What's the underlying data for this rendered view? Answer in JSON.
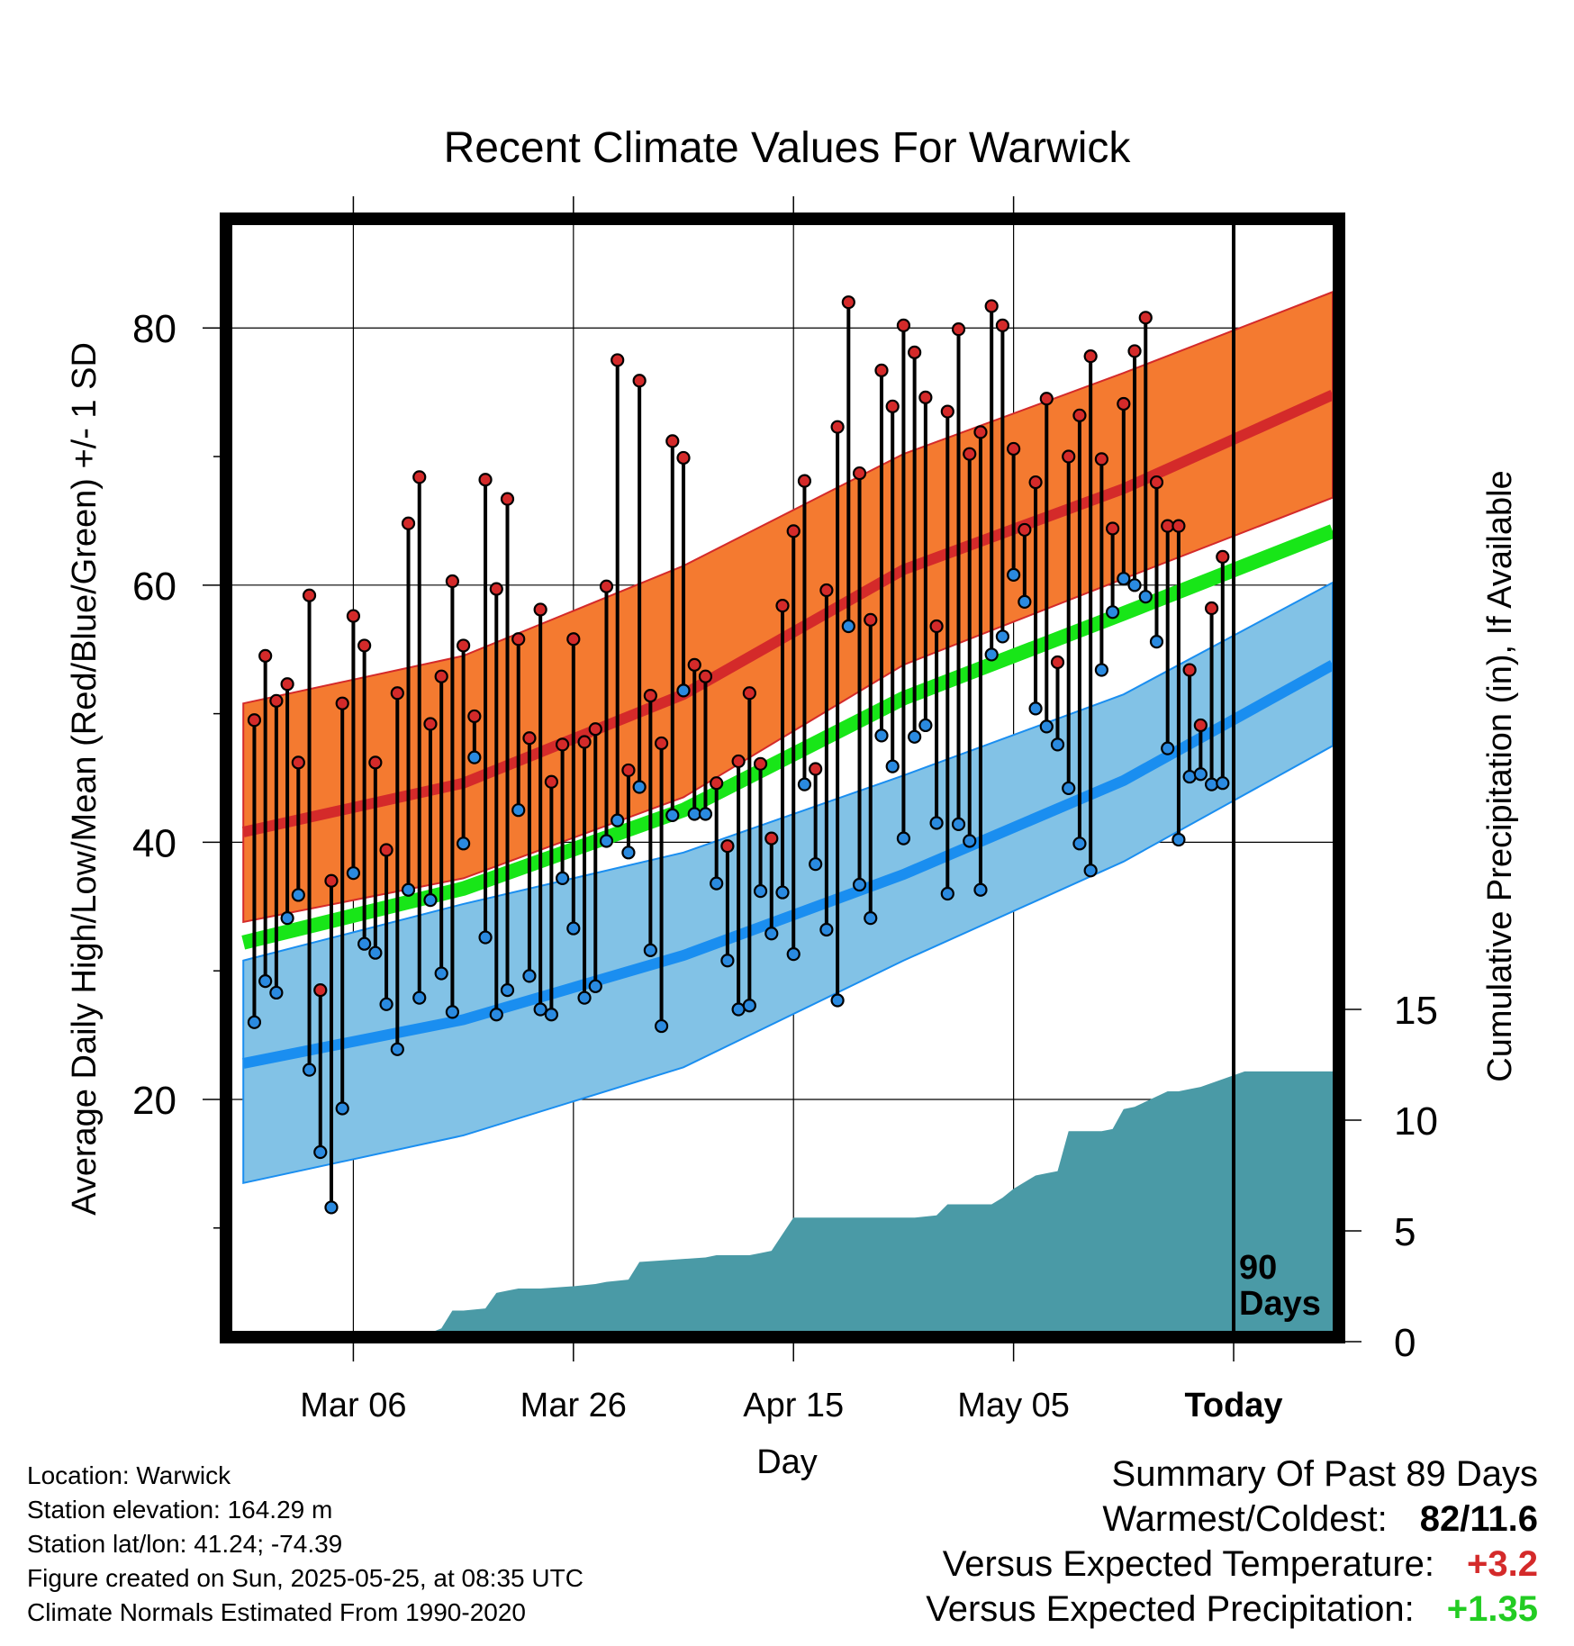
{
  "chart_data": {
    "type": "line",
    "title": "Recent Climate Values For Warwick",
    "xlabel": "Day",
    "ylabel_left": "Average Daily High/Low/Mean (Red/Blue/Green) +/- 1 SD",
    "ylabel_right": "Cumulative Precipitation (in), If Available",
    "x_ticks": [
      "Mar 06",
      "Mar 26",
      "Apr 15",
      "May 05",
      "Today"
    ],
    "x_tick_days": [
      10,
      30,
      50,
      70,
      90
    ],
    "xlim": [
      -1,
      99
    ],
    "ylim_left": [
      2,
      88
    ],
    "y_ticks_left": [
      20,
      40,
      60,
      80
    ],
    "ylim_right": [
      0,
      15
    ],
    "y_ticks_right": [
      0,
      5,
      10,
      15
    ],
    "today_day": 90,
    "today_label": [
      "90",
      "Days"
    ],
    "grid": true,
    "colors": {
      "high_band": "#f47a30",
      "high_line": "#d42a2a",
      "low_band": "#82c2e6",
      "low_line": "#1a8ef0",
      "mean_line": "#18e618",
      "precip": "#4a9aa6",
      "marker_high": "#d42a2a",
      "marker_low": "#2a8ae0",
      "positive_temp": "#d42a2a",
      "positive_precip": "#22cc22"
    },
    "normals": {
      "days": [
        0,
        20,
        40,
        60,
        80,
        99
      ],
      "high_mean": [
        40.8,
        44.6,
        51.5,
        61.2,
        67.5,
        74.8
      ],
      "high_upper": [
        50.8,
        54.5,
        61.5,
        70.2,
        76.5,
        82.8
      ],
      "high_lower": [
        33.8,
        37.2,
        43.5,
        53.8,
        60.5,
        66.8
      ],
      "avg_mean": [
        32.2,
        36.4,
        42.5,
        51.2,
        57.8,
        64.2
      ],
      "low_mean": [
        22.8,
        26.2,
        31.2,
        37.5,
        44.8,
        53.8
      ],
      "low_upper": [
        30.8,
        35.2,
        39.2,
        45.2,
        51.5,
        60.2
      ],
      "low_lower": [
        13.5,
        17.2,
        22.5,
        30.8,
        38.5,
        47.5
      ]
    },
    "daily": {
      "days": [
        1,
        2,
        3,
        4,
        5,
        6,
        7,
        8,
        9,
        10,
        11,
        12,
        13,
        14,
        15,
        16,
        17,
        18,
        19,
        20,
        21,
        22,
        23,
        24,
        25,
        26,
        27,
        28,
        29,
        30,
        31,
        32,
        33,
        34,
        35,
        36,
        37,
        38,
        39,
        40,
        41,
        42,
        43,
        44,
        45,
        46,
        47,
        48,
        49,
        50,
        51,
        52,
        53,
        54,
        55,
        56,
        57,
        58,
        59,
        60,
        61,
        62,
        63,
        64,
        65,
        66,
        67,
        68,
        69,
        70,
        71,
        72,
        73,
        74,
        75,
        76,
        77,
        78,
        79,
        80,
        81,
        82,
        83,
        84,
        85,
        86,
        87,
        88,
        89
      ],
      "high": [
        49.5,
        54.5,
        51.0,
        52.3,
        46.2,
        59.2,
        28.5,
        37.0,
        50.8,
        57.6,
        55.3,
        46.2,
        39.4,
        51.6,
        64.8,
        68.4,
        49.2,
        52.9,
        60.3,
        55.3,
        49.8,
        68.2,
        59.7,
        66.7,
        55.8,
        48.1,
        58.1,
        44.7,
        47.6,
        55.8,
        47.8,
        48.8,
        59.9,
        77.5,
        45.6,
        75.9,
        51.4,
        47.7,
        71.2,
        69.9,
        53.8,
        52.9,
        44.6,
        39.7,
        46.3,
        51.6,
        46.1,
        40.3,
        58.4,
        64.2,
        68.1,
        45.7,
        59.6,
        72.3,
        82.0,
        68.7,
        57.3,
        76.7,
        73.9,
        80.2,
        78.1,
        74.6,
        56.8,
        73.5,
        79.9,
        70.2,
        71.9,
        81.7,
        80.2,
        70.6,
        64.3,
        68.0,
        74.5,
        54.0,
        70.0,
        73.2,
        77.8,
        69.8,
        64.4,
        74.1,
        78.2,
        80.8,
        68.0,
        64.6,
        64.6,
        53.4,
        49.1,
        58.2,
        62.2
      ],
      "low": [
        26.0,
        29.2,
        28.3,
        34.1,
        35.9,
        22.3,
        15.9,
        11.6,
        19.3,
        37.6,
        32.1,
        31.4,
        27.4,
        23.9,
        36.3,
        27.9,
        35.5,
        29.8,
        26.8,
        39.9,
        46.6,
        32.6,
        26.6,
        28.5,
        42.5,
        29.6,
        27.0,
        26.6,
        37.2,
        33.3,
        27.9,
        28.8,
        40.1,
        41.7,
        39.2,
        44.3,
        31.6,
        25.7,
        42.1,
        51.8,
        42.2,
        42.2,
        36.8,
        30.8,
        27.0,
        27.3,
        36.2,
        32.9,
        36.1,
        31.3,
        44.5,
        38.3,
        33.2,
        27.7,
        56.8,
        36.7,
        34.1,
        48.3,
        45.9,
        40.3,
        48.2,
        49.1,
        41.5,
        36.0,
        41.4,
        40.1,
        36.3,
        54.6,
        56.0,
        60.8,
        58.7,
        50.4,
        49.0,
        47.6,
        44.2,
        39.9,
        37.8,
        53.4,
        57.9,
        60.5,
        60.0,
        59.1,
        55.6,
        47.3,
        40.2,
        45.1,
        45.3,
        44.5,
        44.6
      ]
    },
    "precip": {
      "day": [
        0,
        7,
        8,
        17,
        18,
        19,
        20,
        22,
        23,
        24,
        25,
        26,
        27,
        30,
        32,
        33,
        35,
        36,
        39,
        42,
        43,
        46,
        47,
        48,
        50,
        60,
        61,
        63,
        64,
        68,
        69,
        70,
        72,
        73,
        74,
        75,
        78,
        79,
        80,
        81,
        84,
        85,
        86,
        87,
        91,
        99
      ],
      "cumulative": [
        0,
        0,
        0.4,
        0.4,
        0.6,
        1.4,
        1.4,
        1.5,
        2.2,
        2.3,
        2.4,
        2.4,
        2.4,
        2.5,
        2.6,
        2.7,
        2.8,
        3.6,
        3.7,
        3.8,
        3.9,
        3.9,
        4.0,
        4.1,
        5.6,
        5.6,
        5.6,
        5.7,
        6.2,
        6.2,
        6.5,
        6.9,
        7.5,
        7.6,
        7.7,
        9.5,
        9.5,
        9.6,
        10.5,
        10.6,
        11.3,
        11.3,
        11.4,
        11.5,
        12.2,
        12.2
      ]
    }
  },
  "footer": {
    "location": "Location: Warwick",
    "elevation": "Station elevation: 164.29 m",
    "latlon": "Station lat/lon: 41.24; -74.39",
    "created": "Figure created on Sun, 2025-05-25, at 08:35 UTC",
    "normals": "Climate Normals Estimated From 1990-2020"
  },
  "summary": {
    "title": "Summary Of Past 89 Days",
    "warmest_coldest_label": "Warmest/Coldest:",
    "warmest_coldest_value": "82/11.6",
    "temp_label": "Versus Expected Temperature:",
    "temp_value": "+3.2",
    "precip_label": "Versus Expected Precipitation:",
    "precip_value": "+1.35"
  }
}
